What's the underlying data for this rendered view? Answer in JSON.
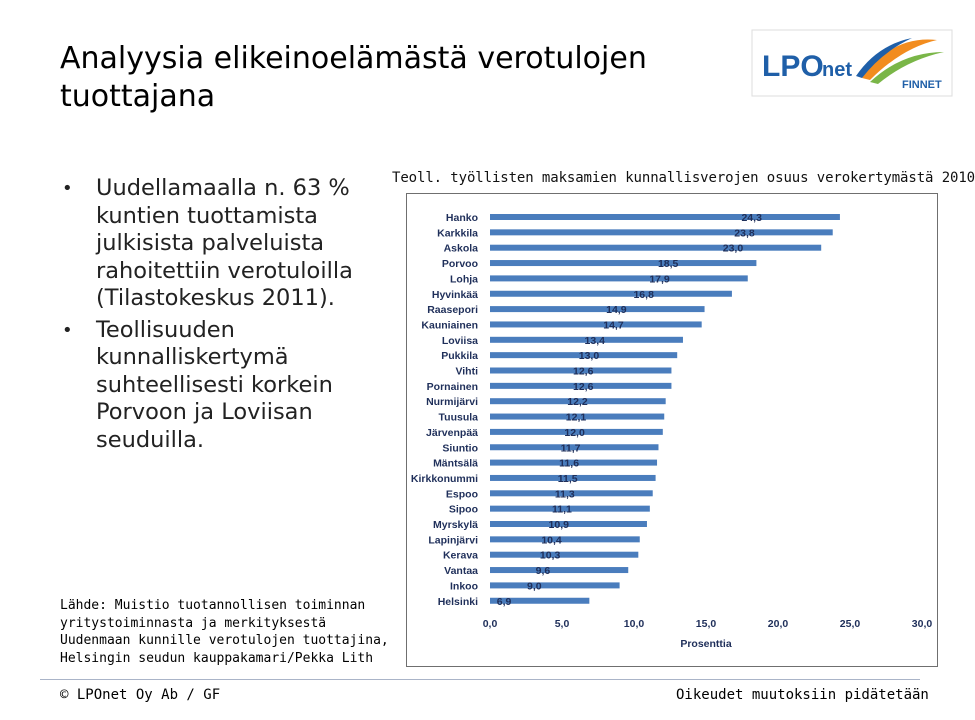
{
  "slide": {
    "title": "Analyysia elikeinoelämästä verotulojen tuottajana",
    "bullets": [
      "Uudellamaalla n. 63 % kuntien tuottamista julkisista palveluista rahoitettiin verotuloilla (Tilastokeskus 2011).",
      "Teollisuuden kunnalliskertymä suhteellisesti korkein Porvoon ja Loviisan seuduilla."
    ],
    "bullet_symbol": "•",
    "source": "Lähde: Muistio tuotannollisen toiminnan yritystoiminnasta ja merkityksestä Uudenmaan kunnille verotulojen tuottajina, Helsingin seudun kauppakamari/Pekka Lith"
  },
  "logo": {
    "text_main": "LPO",
    "text_sub": "net",
    "text_tag": "FINNET",
    "colors": {
      "blue": "#1f5fa8",
      "orange": "#f28c1e",
      "green": "#7ab648"
    }
  },
  "footer": {
    "left": "© LPOnet Oy Ab / GF",
    "right": "Oikeudet muutoksiin pidätetään"
  },
  "chart_data": {
    "type": "bar",
    "orientation": "horizontal",
    "title": "Teoll. työllisten maksamien kunnallisverojen osuus verokertymästä 2010",
    "xlabel": "Prosenttia",
    "ylabel": "",
    "xlim": [
      0,
      30
    ],
    "xticks": [
      "0,0",
      "5,0",
      "10,0",
      "15,0",
      "20,0",
      "25,0",
      "30,0"
    ],
    "grid": false,
    "legend": "none",
    "bar_color": "#4a7dbd",
    "categories": [
      "Hanko",
      "Karkkila",
      "Askola",
      "Porvoo",
      "Lohja",
      "Hyvinkää",
      "Raasepori",
      "Kauniainen",
      "Loviisa",
      "Pukkila",
      "Vihti",
      "Pornainen",
      "Nurmijärvi",
      "Tuusula",
      "Järvenpää",
      "Siuntio",
      "Mäntsälä",
      "Kirkkonummi",
      "Espoo",
      "Sipoo",
      "Myrskylä",
      "Lapinjärvi",
      "Kerava",
      "Vantaa",
      "Inkoo",
      "Helsinki"
    ],
    "values": [
      24.3,
      23.8,
      23.0,
      18.5,
      17.9,
      16.8,
      14.9,
      14.7,
      13.4,
      13.0,
      12.6,
      12.6,
      12.2,
      12.1,
      12.0,
      11.7,
      11.6,
      11.5,
      11.3,
      11.1,
      10.9,
      10.4,
      10.3,
      9.6,
      9.0,
      6.9
    ],
    "value_labels": [
      "24,3",
      "23,8",
      "23,0",
      "18,5",
      "17,9",
      "16,8",
      "14,9",
      "14,7",
      "13,4",
      "13,0",
      "12,6",
      "12,6",
      "12,2",
      "12,1",
      "12,0",
      "11,7",
      "11,6",
      "11,5",
      "11,3",
      "11,1",
      "10,9",
      "10,4",
      "10,3",
      "9,6",
      "9,0",
      "6,9"
    ]
  }
}
